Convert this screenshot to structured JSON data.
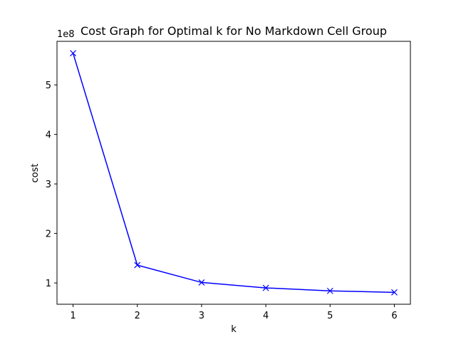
{
  "chart_data": {
    "type": "line",
    "title": "Cost Graph for Optimal k for No Markdown Cell Group",
    "xlabel": "k",
    "ylabel": "cost",
    "y_offset_label": "1e8",
    "x": [
      1,
      2,
      3,
      4,
      5,
      6
    ],
    "series": [
      {
        "values": [
          564000000,
          136000000,
          101000000,
          90000000,
          84000000,
          81000000
        ],
        "color": "#0000ff",
        "marker": "x"
      }
    ],
    "xlim": [
      0.75,
      6.25
    ],
    "ylim": [
      57000000,
      588000000
    ],
    "xticks": [
      1,
      2,
      3,
      4,
      5,
      6
    ],
    "yticks": [
      100000000,
      200000000,
      300000000,
      400000000,
      500000000
    ],
    "ytick_labels": [
      "1",
      "2",
      "3",
      "4",
      "5"
    ],
    "grid": false
  }
}
